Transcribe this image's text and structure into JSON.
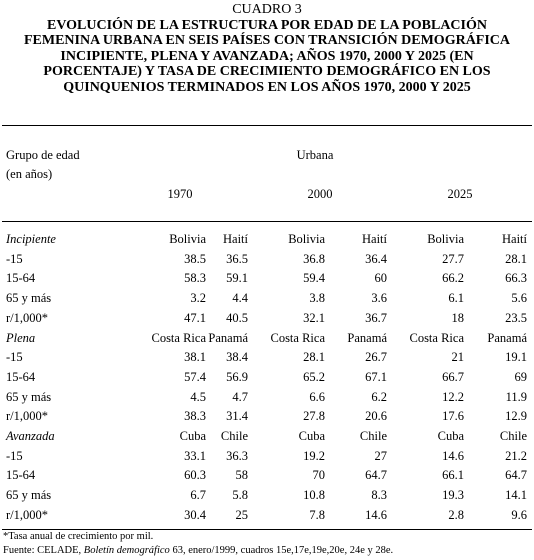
{
  "title": {
    "label": "CUADRO 3",
    "text": "EVOLUCIÓN DE LA ESTRUCTURA POR EDAD DE LA POBLACIÓN FEMENINA URBANA EN SEIS PAÍSES CON TRANSICIÓN DEMOGRÁFICA INCIPIENTE, PLENA Y AVANZADA; AÑOS 1970, 2000 Y 2025 (EN PORCENTAJE) Y TASA DE CRECIMIENTO DEMOGRÁFICO EN LOS QUINQUENIOS TERMINADOS EN LOS AÑOS 1970, 2000 Y 2025",
    "lines": [
      "EVOLUCIÓN DE LA ESTRUCTURA POR EDAD DE LA POBLACIÓN",
      "FEMENINA URBANA EN SEIS PAÍSES CON TRANSICIÓN DEMOGRÁFICA",
      "INCIPIENTE, PLENA Y AVANZADA; AÑOS 1970, 2000 Y 2025 (EN",
      "PORCENTAJE) Y TASA DE CRECIMIENTO DEMOGRÁFICO EN LOS",
      "QUINQUENIOS TERMINADOS EN LOS AÑOS 1970, 2000 Y 2025"
    ]
  },
  "header": {
    "row_label_line1": "Grupo de edad",
    "row_label_line2": "(en años)",
    "group": "Urbana",
    "years": [
      "1970",
      "2000",
      "2025"
    ]
  },
  "sections": [
    {
      "name": "Incipiente",
      "countries": [
        "Bolivia",
        "Haití",
        "Bolivia",
        "Haití",
        "Bolivia",
        "Haití"
      ],
      "rows": [
        {
          "label": "-15",
          "values": [
            "38.5",
            "36.5",
            "36.8",
            "36.4",
            "27.7",
            "28.1"
          ]
        },
        {
          "label": "15-64",
          "values": [
            "58.3",
            "59.1",
            "59.4",
            "60",
            "66.2",
            "66.3"
          ]
        },
        {
          "label": "65 y más",
          "values": [
            "3.2",
            "4.4",
            "3.8",
            "3.6",
            "6.1",
            "5.6"
          ]
        },
        {
          "label": "r/1,000*",
          "values": [
            "47.1",
            "40.5",
            "32.1",
            "36.7",
            "18",
            "23.5"
          ]
        }
      ]
    },
    {
      "name": "Plena",
      "countries": [
        "Costa Rica",
        "Panamá",
        "Costa Rica",
        "Panamá",
        "Costa Rica",
        "Panamá"
      ],
      "rows": [
        {
          "label": "-15",
          "values": [
            "38.1",
            "38.4",
            "28.1",
            "26.7",
            "21",
            "19.1"
          ]
        },
        {
          "label": "15-64",
          "values": [
            "57.4",
            "56.9",
            "65.2",
            "67.1",
            "66.7",
            "69"
          ]
        },
        {
          "label": "65 y más",
          "values": [
            "4.5",
            "4.7",
            "6.6",
            "6.2",
            "12.2",
            "11.9"
          ]
        },
        {
          "label": "r/1,000*",
          "values": [
            "38.3",
            "31.4",
            "27.8",
            "20.6",
            "17.6",
            "12.9"
          ]
        }
      ]
    },
    {
      "name": "Avanzada",
      "countries": [
        "Cuba",
        "Chile",
        "Cuba",
        "Chile",
        "Cuba",
        "Chile"
      ],
      "rows": [
        {
          "label": "-15",
          "values": [
            "33.1",
            "36.3",
            "19.2",
            "27",
            "14.6",
            "21.2"
          ]
        },
        {
          "label": "15-64",
          "values": [
            "60.3",
            "58",
            "70",
            "64.7",
            "66.1",
            "64.7"
          ]
        },
        {
          "label": "65 y más",
          "values": [
            "6.7",
            "5.8",
            "10.8",
            "8.3",
            "19.3",
            "14.1"
          ]
        },
        {
          "label": "r/1,000*",
          "values": [
            "30.4",
            "25",
            "7.8",
            "14.6",
            "2.8",
            "9.6"
          ]
        }
      ]
    }
  ],
  "footnotes": {
    "note": "*Tasa anual de crecimiento por mil.",
    "source_prefix": "Fuente: CELADE, ",
    "source_title": "Boletín demográfico",
    "source_suffix": " 63, enero/1999,  cuadros 15e,17e,19e,20e, 24e y 28e."
  }
}
